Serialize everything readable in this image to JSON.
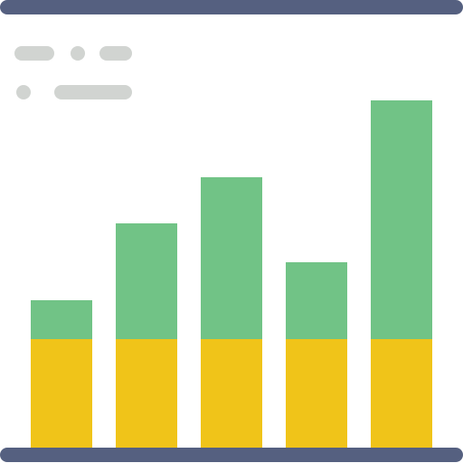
{
  "chart_data": {
    "type": "bar",
    "stacked": true,
    "categories": [
      "",
      "",
      "",
      "",
      ""
    ],
    "series": [
      {
        "values": [
          120,
          120,
          120,
          120,
          120
        ]
      },
      {
        "values": [
          43,
          128,
          179,
          85,
          264
        ]
      }
    ],
    "ylim": [
      0,
      384
    ],
    "grid": false,
    "legend": "top-left",
    "title": "",
    "xlabel": "",
    "ylabel": ""
  },
  "colors": {
    "frame": "#556080",
    "series_base": "#F0C419",
    "series_top": "#71C386",
    "placeholder": "#D1D4D1",
    "background": "#FFFFFF"
  },
  "legend_placeholder": {
    "rows": [
      [
        "line",
        "dot",
        "line"
      ],
      [
        "dot",
        "line"
      ]
    ]
  }
}
